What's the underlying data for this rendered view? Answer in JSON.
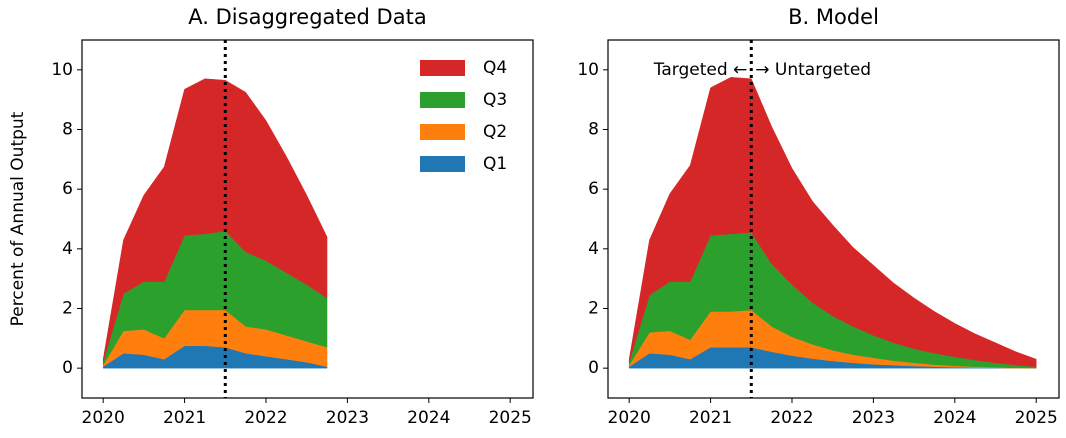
{
  "chart_data": [
    {
      "type": "stacked_area",
      "title": "A. Disaggregated Data",
      "ylabel": "Percent of Annual Output",
      "x": [
        2020,
        2020.25,
        2020.5,
        2020.75,
        2021,
        2021.25,
        2021.5,
        2021.75,
        2022,
        2022.25,
        2022.5,
        2022.75
      ],
      "series": [
        {
          "name": "Q1",
          "color": "#1f77b4",
          "values": [
            0.05,
            0.5,
            0.45,
            0.3,
            0.75,
            0.75,
            0.7,
            0.5,
            0.4,
            0.3,
            0.2,
            0.05
          ]
        },
        {
          "name": "Q2",
          "color": "#ff7f0e",
          "values": [
            0.05,
            0.75,
            0.85,
            0.7,
            1.2,
            1.2,
            1.25,
            0.9,
            0.9,
            0.8,
            0.7,
            0.65
          ]
        },
        {
          "name": "Q3",
          "color": "#2ca02c",
          "values": [
            0.1,
            1.25,
            1.6,
            1.9,
            2.5,
            2.55,
            2.65,
            2.5,
            2.3,
            2.1,
            1.9,
            1.65
          ]
        },
        {
          "name": "Q4",
          "color": "#d62728",
          "values": [
            0.1,
            1.8,
            2.9,
            3.85,
            4.9,
            5.2,
            5.05,
            5.35,
            4.7,
            3.9,
            3.0,
            2.05
          ]
        }
      ],
      "vline": 2021.5,
      "legend": "upper right",
      "xlim": [
        2019.74,
        2025.28
      ],
      "xticks": [
        2020,
        2021,
        2022,
        2023,
        2024,
        2025
      ],
      "ylim": [
        -1,
        11
      ],
      "yticks": [
        0,
        2,
        4,
        6,
        8,
        10
      ]
    },
    {
      "type": "stacked_area",
      "title": "B. Model",
      "x": [
        2020,
        2020.25,
        2020.5,
        2020.75,
        2021,
        2021.25,
        2021.5,
        2021.75,
        2022,
        2022.25,
        2022.5,
        2022.75,
        2023,
        2023.25,
        2023.5,
        2023.75,
        2024,
        2024.25,
        2024.5,
        2024.75,
        2025
      ],
      "series": [
        {
          "name": "Q1",
          "color": "#1f77b4",
          "values": [
            0.05,
            0.5,
            0.45,
            0.3,
            0.7,
            0.7,
            0.7,
            0.55,
            0.42,
            0.32,
            0.24,
            0.18,
            0.13,
            0.1,
            0.07,
            0.05,
            0.03,
            0.02,
            0.01,
            0,
            0
          ]
        },
        {
          "name": "Q2",
          "color": "#ff7f0e",
          "values": [
            0.05,
            0.7,
            0.8,
            0.65,
            1.2,
            1.2,
            1.25,
            0.85,
            0.63,
            0.48,
            0.36,
            0.27,
            0.22,
            0.15,
            0.11,
            0.07,
            0.05,
            0.03,
            0.02,
            0.01,
            0
          ]
        },
        {
          "name": "Q3",
          "color": "#2ca02c",
          "values": [
            0.1,
            1.25,
            1.65,
            1.95,
            2.55,
            2.6,
            2.6,
            2.1,
            1.75,
            1.4,
            1.15,
            0.95,
            0.75,
            0.6,
            0.47,
            0.38,
            0.3,
            0.22,
            0.15,
            0.09,
            0.05
          ]
        },
        {
          "name": "Q4",
          "color": "#d62728",
          "values": [
            0.1,
            1.85,
            2.95,
            3.9,
            4.95,
            5.25,
            5.15,
            4.6,
            3.9,
            3.4,
            3.05,
            2.65,
            2.35,
            2.0,
            1.7,
            1.4,
            1.12,
            0.88,
            0.67,
            0.45,
            0.25
          ]
        }
      ],
      "vline": 2021.5,
      "legend": "none",
      "annotations": [
        "Targeted ←",
        "→ Untargeted"
      ],
      "xlim": [
        2019.74,
        2025.28
      ],
      "xticks": [
        2020,
        2021,
        2022,
        2023,
        2024,
        2025
      ],
      "ylim": [
        -1,
        11
      ],
      "yticks": [
        0,
        2,
        4,
        6,
        8,
        10
      ]
    }
  ]
}
